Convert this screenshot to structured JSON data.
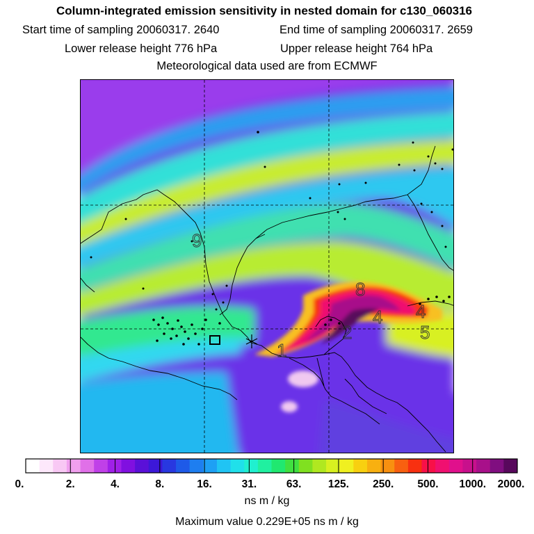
{
  "header": {
    "title": "Column-integrated emission sensitivity in nested domain for c130_060316",
    "start_time": "Start time of sampling 20060317.  2640",
    "end_time": "End time of sampling 20060317.  2659",
    "lower_release": "Lower release height  776 hPa",
    "upper_release": "Upper release height  764 hPa",
    "met_data": "Meteorological data used are from ECMWF"
  },
  "map": {
    "contour_labels": [
      "9",
      "8",
      "4",
      "5",
      "4",
      "2",
      "1"
    ]
  },
  "colorbar": {
    "ticks": [
      "0.",
      "2.",
      "4.",
      "8.",
      "16.",
      "31.",
      "63.",
      "125.",
      "250.",
      "500.",
      "1000.",
      "2000."
    ],
    "colors": [
      "#ffffff",
      "#fde8fb",
      "#f8c8f4",
      "#f0a0ee",
      "#e070e8",
      "#c040e8",
      "#a020e8",
      "#8010e0",
      "#5a10d8",
      "#3c18d8",
      "#2838e0",
      "#1e5ae8",
      "#1e7ef0",
      "#1ea0f4",
      "#20c4f4",
      "#20e0ea",
      "#20f0d0",
      "#20f0a0",
      "#20e870",
      "#40e040",
      "#80e020",
      "#b0e820",
      "#d8f020",
      "#f0f020",
      "#f8d010",
      "#f8b010",
      "#f89010",
      "#f86010",
      "#f83010",
      "#f81048",
      "#f01070",
      "#e0108c",
      "#c8108c",
      "#a8108a",
      "#800e80",
      "#58085c"
    ],
    "units": "ns m / kg",
    "max_value": "Maximum value  0.229E+05 ns m / kg"
  }
}
